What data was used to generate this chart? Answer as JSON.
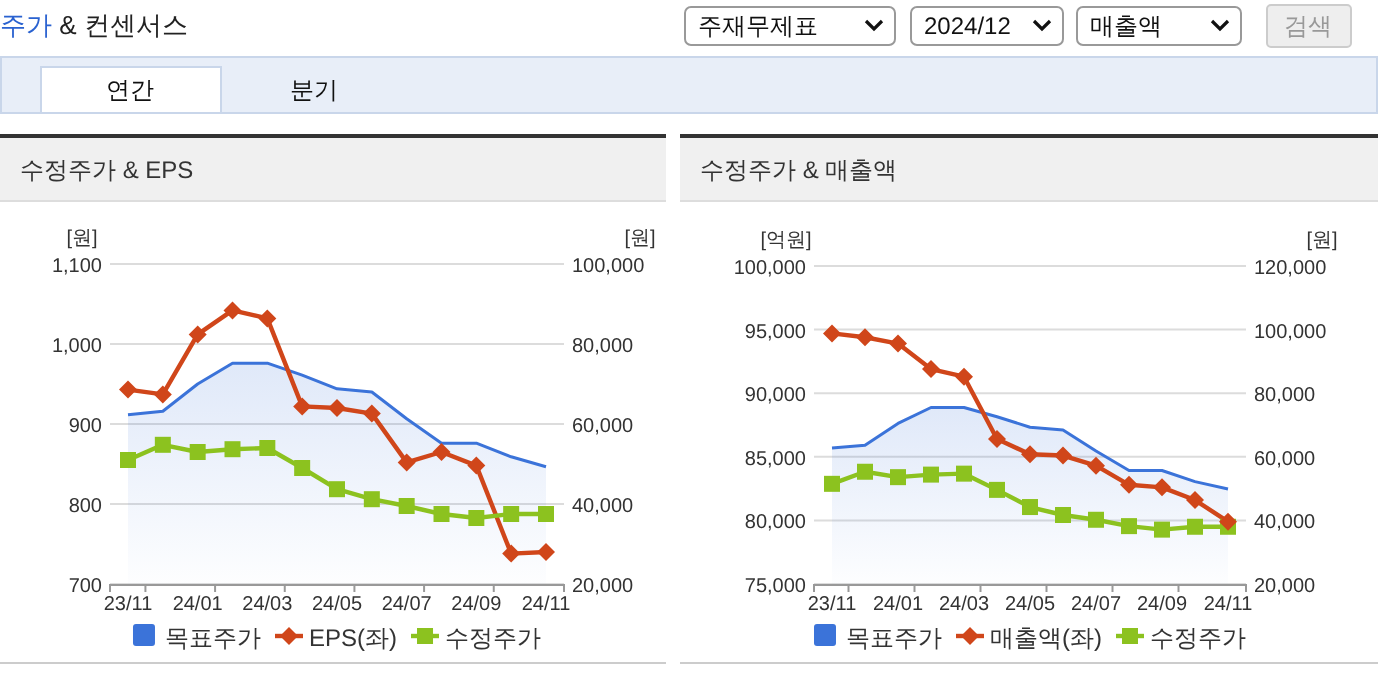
{
  "chart_data": [
    {
      "type": "other",
      "title": "주가 & 컨센서스",
      "annotations": [
        "주재무제표",
        "2024/12",
        "매출액",
        "검색",
        "연간",
        "분기"
      ]
    },
    {
      "type": "line",
      "title": "수정주가 & EPS",
      "ylabel": "[원]",
      "y2label": "[원]",
      "categories": [
        "23/11",
        null,
        "24/01",
        null,
        "24/03",
        null,
        "24/05",
        null,
        "24/07",
        null,
        "24/09",
        null,
        "24/11"
      ],
      "series": [
        {
          "name": "목표주가",
          "type": "area",
          "axis": "y2",
          "color": "#3b73d9",
          "values": [
            62300,
            63200,
            70000,
            75200,
            75200,
            72200,
            68800,
            68000,
            61300,
            55200,
            55200,
            51800,
            49300
          ]
        },
        {
          "name": "EPS(좌)",
          "type": "line",
          "axis": "y",
          "marker": "diamond",
          "color": "#d0461a",
          "values": [
            943,
            937,
            1012,
            1042,
            1032,
            922,
            920,
            913,
            852,
            865,
            848,
            738,
            740
          ]
        },
        {
          "name": "수정주가",
          "type": "line",
          "axis": "y2",
          "marker": "square",
          "color": "#8cc21f",
          "values": [
            51000,
            54800,
            53000,
            53700,
            54000,
            49000,
            43700,
            41200,
            39500,
            37500,
            36500,
            37500,
            37500
          ]
        }
      ],
      "ylim": [
        700,
        1100
      ],
      "yticks": [
        700,
        800,
        900,
        {
          "value": 1000,
          "label": "1,000"
        },
        {
          "value": 1100,
          "label": "1,100"
        }
      ],
      "y2lim": [
        20000,
        100000
      ],
      "y2ticks": [
        {
          "value": 20000,
          "label": "20,000"
        },
        {
          "value": 40000,
          "label": "40,000"
        },
        {
          "value": 60000,
          "label": "60,000"
        },
        {
          "value": 80000,
          "label": "80,000"
        },
        {
          "value": 100000,
          "label": "100,000"
        }
      ],
      "grid": "y",
      "legend": "bottom"
    },
    {
      "type": "line",
      "title": "수정주가 & 매출액",
      "ylabel": "[억원]",
      "y2label": "[원]",
      "categories": [
        "23/11",
        null,
        "24/01",
        null,
        "24/03",
        null,
        "24/05",
        null,
        "24/07",
        null,
        "24/09",
        null,
        "24/11"
      ],
      "series": [
        {
          "name": "목표주가",
          "type": "area",
          "axis": "y2",
          "color": "#3b73d9",
          "values": [
            62800,
            63600,
            70500,
            75500,
            75500,
            72600,
            69300,
            68400,
            61800,
            55700,
            55700,
            52200,
            49900
          ]
        },
        {
          "name": "매출액(좌)",
          "type": "line",
          "axis": "y",
          "marker": "diamond",
          "color": "#d0461a",
          "values": [
            94700,
            94400,
            93900,
            91900,
            91300,
            86400,
            85200,
            85100,
            84300,
            82800,
            82600,
            81600,
            79900
          ]
        },
        {
          "name": "수정주가",
          "type": "line",
          "axis": "y2",
          "marker": "square",
          "color": "#8cc21f",
          "values": [
            51500,
            55300,
            53600,
            54400,
            54700,
            49600,
            44200,
            41700,
            40200,
            38200,
            37100,
            38000,
            38000
          ]
        }
      ],
      "ylim": [
        75000,
        100000
      ],
      "yticks": [
        {
          "value": 75000,
          "label": "75,000"
        },
        {
          "value": 80000,
          "label": "80,000"
        },
        {
          "value": 85000,
          "label": "85,000"
        },
        {
          "value": 90000,
          "label": "90,000"
        },
        {
          "value": 95000,
          "label": "95,000"
        },
        {
          "value": 100000,
          "label": "100,000"
        }
      ],
      "y2lim": [
        20000,
        120000
      ],
      "y2ticks": [
        {
          "value": 20000,
          "label": "20,000"
        },
        {
          "value": 40000,
          "label": "40,000"
        },
        {
          "value": 60000,
          "label": "60,000"
        },
        {
          "value": 80000,
          "label": "80,000"
        },
        {
          "value": 100000,
          "label": "100,000"
        },
        {
          "value": 120000,
          "label": "120,000"
        }
      ],
      "grid": "y",
      "legend": "bottom"
    }
  ]
}
